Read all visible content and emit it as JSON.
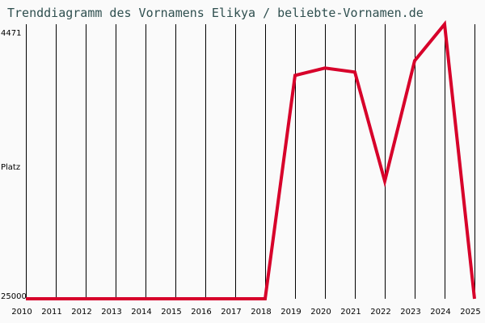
{
  "chart_data": {
    "type": "line",
    "title": "Trenddiagramm des Vornamens Elikya / beliebte-Vornamen.de",
    "xlabel": "",
    "ylabel": "Platz",
    "y_top_label": "4471",
    "y_bottom_label": "25000",
    "ylim": [
      25000,
      4471
    ],
    "y_inverted": true,
    "grid": "vertical",
    "categories": [
      "2010",
      "2011",
      "2012",
      "2013",
      "2014",
      "2015",
      "2016",
      "2017",
      "2018",
      "2019",
      "2020",
      "2021",
      "2022",
      "2023",
      "2024",
      "2025"
    ],
    "series": [
      {
        "name": "Elikya",
        "color": "#d7002a",
        "values": [
          25000,
          25000,
          25000,
          25000,
          25000,
          25000,
          25000,
          25000,
          25000,
          8300,
          7750,
          8050,
          16200,
          7200,
          4471,
          25000
        ]
      }
    ]
  }
}
